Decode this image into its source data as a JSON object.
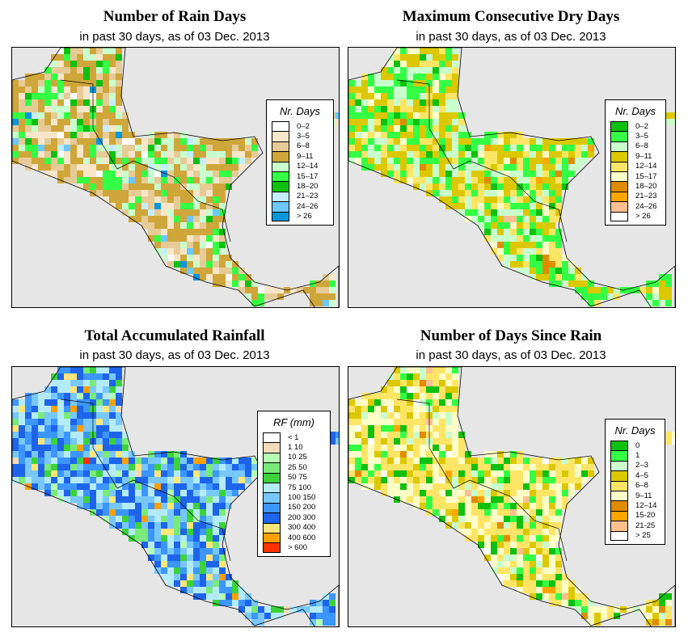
{
  "chart_data": [
    {
      "type": "heatmap",
      "title": "Number of Rain Days",
      "subtitle": "in past 30 days, as of  03 Dec. 2013",
      "legend": {
        "title": "Nr. Days",
        "labels": [
          "0–2",
          "3–5",
          "6–8",
          "9–11",
          "12–14",
          "15–17",
          "18–20",
          "21–23",
          "24–26",
          "> 26"
        ],
        "colors": [
          "#ffffff",
          "#f7e6c9",
          "#e6cb96",
          "#cfa63a",
          "#c8ffcc",
          "#33ff44",
          "#10c010",
          "#c4eefe",
          "#6cc8fe",
          "#0a96dc"
        ]
      },
      "weights": [
        1,
        6,
        10,
        18,
        6,
        5,
        2,
        1,
        1,
        0.5
      ]
    },
    {
      "type": "heatmap",
      "title": "Maximum Consecutive Dry Days",
      "subtitle": "in past 30 days, as of  03 Dec. 2013",
      "legend": {
        "title": "Nr. Days",
        "labels": [
          "0–2",
          "3–5",
          "6–8",
          "9–11",
          "12–14",
          "15–17",
          "18–20",
          "21–23",
          "24–26",
          "> 26"
        ],
        "colors": [
          "#10c010",
          "#33ff44",
          "#c8ffcc",
          "#dcc800",
          "#ffe566",
          "#ffffc8",
          "#e08c00",
          "#ffa500",
          "#ffc090",
          "#ffffff"
        ]
      },
      "weights": [
        1,
        10,
        8,
        10,
        6,
        2,
        0.5,
        0.3,
        0.3,
        0
      ]
    },
    {
      "type": "heatmap",
      "title": "Total Accumulated Rainfall",
      "subtitle": "in past 30 days, as of  03 Dec. 2013",
      "legend": {
        "title": "RF (mm)",
        "labels": [
          "< 1",
          "1  10",
          "10  25",
          "25  50",
          "50  75",
          "75  100",
          "100  150",
          "150  200",
          "200  300",
          "300  400",
          "400  600",
          "> 600"
        ],
        "colors": [
          "#ffffff",
          "#f0dcb8",
          "#b4ffb4",
          "#78eb78",
          "#3cd23c",
          "#b4ebfa",
          "#78c8ff",
          "#3c96ff",
          "#1e64eb",
          "#ffe678",
          "#ffa000",
          "#ff3200"
        ]
      },
      "weights": [
        0,
        0.2,
        1,
        3,
        3,
        8,
        10,
        8,
        10,
        2,
        1,
        0.3
      ]
    },
    {
      "type": "heatmap",
      "title": "Number of Days Since Rain",
      "subtitle": "in past 30 days, as of  03 Dec. 2013",
      "legend": {
        "title": "Nr. Days",
        "labels": [
          "0",
          "1",
          "2–3",
          "4–5",
          "6–8",
          "9–11",
          "12–14",
          "15-20",
          "21-25",
          "> 25"
        ],
        "colors": [
          "#10c010",
          "#33ff44",
          "#c8ffcc",
          "#dcc800",
          "#ffe566",
          "#ffffc8",
          "#e08c00",
          "#ffa500",
          "#ffc090",
          "#ffffff"
        ]
      },
      "weights": [
        3,
        3,
        2,
        5,
        12,
        10,
        0.3,
        0.3,
        0.5,
        0.5
      ]
    }
  ]
}
